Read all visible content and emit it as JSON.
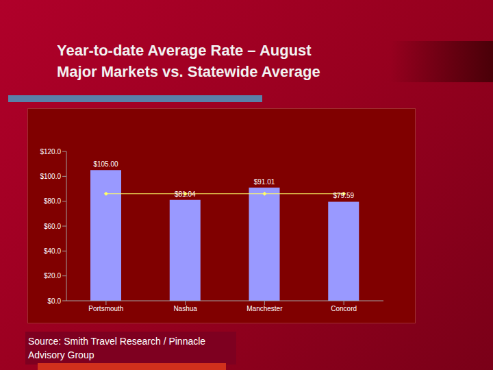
{
  "chart_data": {
    "type": "bar",
    "title": "Year-to-date Average Rate – August",
    "subtitle": "Major Markets vs. Statewide Average",
    "annotations": [
      "Source: Smith Travel Research / Pinnacle Advisory Group"
    ],
    "categories": [
      "Portsmouth",
      "Nashua",
      "Manchester",
      "Concord"
    ],
    "series": [
      {
        "type": "bar",
        "color": "#9999ff",
        "values": [
          105.0,
          81.04,
          91.01,
          79.59
        ],
        "value_labels": [
          "$105.00",
          "$81.04",
          "$91.01",
          "$79.59"
        ],
        "data_labels": true
      },
      {
        "type": "line",
        "color": "#ffff66",
        "marker": "diamond",
        "line_style": "solid",
        "values": [
          86,
          86,
          86,
          86
        ]
      }
    ],
    "ylim": [
      0,
      120
    ],
    "yticks": [
      {
        "value": 0,
        "label": "$0.0"
      },
      {
        "value": 20,
        "label": "$20.0"
      },
      {
        "value": 40,
        "label": "$40.0"
      },
      {
        "value": 60,
        "label": "$60.0"
      },
      {
        "value": 80,
        "label": "$80.0"
      },
      {
        "value": 100,
        "label": "$100.0"
      },
      {
        "value": 120,
        "label": "$120.0"
      }
    ],
    "grid": false
  }
}
